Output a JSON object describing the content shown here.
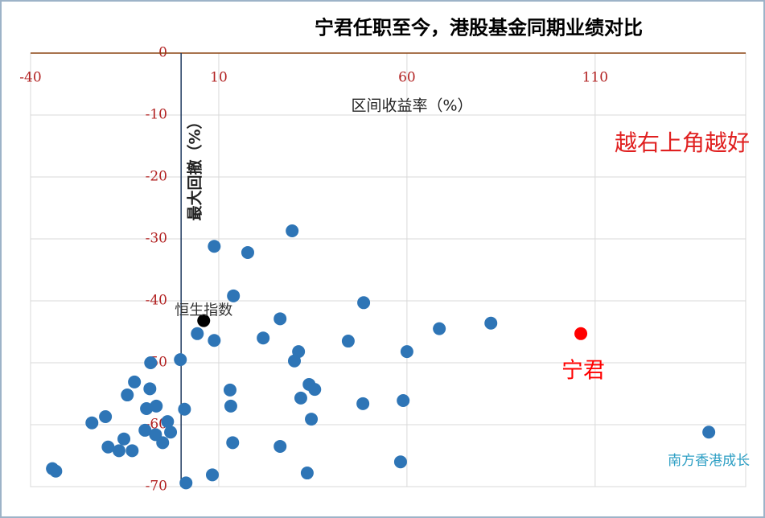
{
  "chart_data": {
    "type": "scatter",
    "title": "宁君任职至今，港股基金同期业绩对比",
    "x_label": "区间收益率（%）",
    "y_label": "最大回撤（%）",
    "xlim": [
      -40,
      150
    ],
    "xticks": [
      -40,
      10,
      60,
      110
    ],
    "ylim": [
      -70,
      0
    ],
    "yticks": [
      0,
      -10,
      -20,
      -30,
      -40,
      -50,
      -60,
      -70
    ],
    "grid": true,
    "series": [
      {
        "color": "#2e75b6",
        "x": [
          8.8,
          17.7,
          29.5,
          13.9,
          48.5,
          4.3,
          8.8,
          21.8,
          26.3,
          44.4,
          31.2,
          30.1,
          60.0,
          68.6,
          82.3,
          -0.2,
          -12.4,
          -8.1,
          -8.3,
          -14.3,
          -6.6,
          -9.2,
          0.9,
          -3.6,
          -20.1,
          -23.7,
          -9.6,
          -6.8,
          -2.8,
          -15.2,
          -4.9,
          -19.4,
          -16.5,
          -13.0,
          -34.2,
          -33.3,
          1.3,
          8.3,
          13.0,
          13.2,
          13.7,
          26.3,
          34.0,
          35.5,
          31.8,
          34.6,
          33.5,
          48.3,
          59.0,
          58.3,
          140.2
        ],
        "values": [
          -31.2,
          -32.2,
          -28.7,
          -39.2,
          -40.3,
          -45.3,
          -46.4,
          -46.0,
          -42.9,
          -46.5,
          -48.2,
          -49.7,
          -48.2,
          -44.5,
          -43.6,
          -49.5,
          -53.1,
          -50.0,
          -54.2,
          -55.2,
          -57.0,
          -57.4,
          -57.5,
          -59.5,
          -58.7,
          -59.7,
          -60.9,
          -61.6,
          -61.2,
          -62.3,
          -62.9,
          -63.6,
          -64.2,
          -64.2,
          -67.1,
          -67.5,
          -69.4,
          -68.1,
          -54.4,
          -57.0,
          -62.9,
          -63.5,
          -53.5,
          -54.3,
          -55.7,
          -59.1,
          -67.8,
          -56.6,
          -56.1,
          -66.0,
          -61.2
        ]
      },
      {
        "name": "恒生指数",
        "color": "#000000",
        "x": [
          6.0
        ],
        "values": [
          -43.2
        ]
      },
      {
        "name": "宁君",
        "color": "#ff0000",
        "x": [
          106.2
        ],
        "values": [
          -45.3
        ]
      }
    ],
    "annotations": [
      {
        "text": "南方香港成长"
      },
      {
        "text": "越右上角越好"
      }
    ]
  }
}
